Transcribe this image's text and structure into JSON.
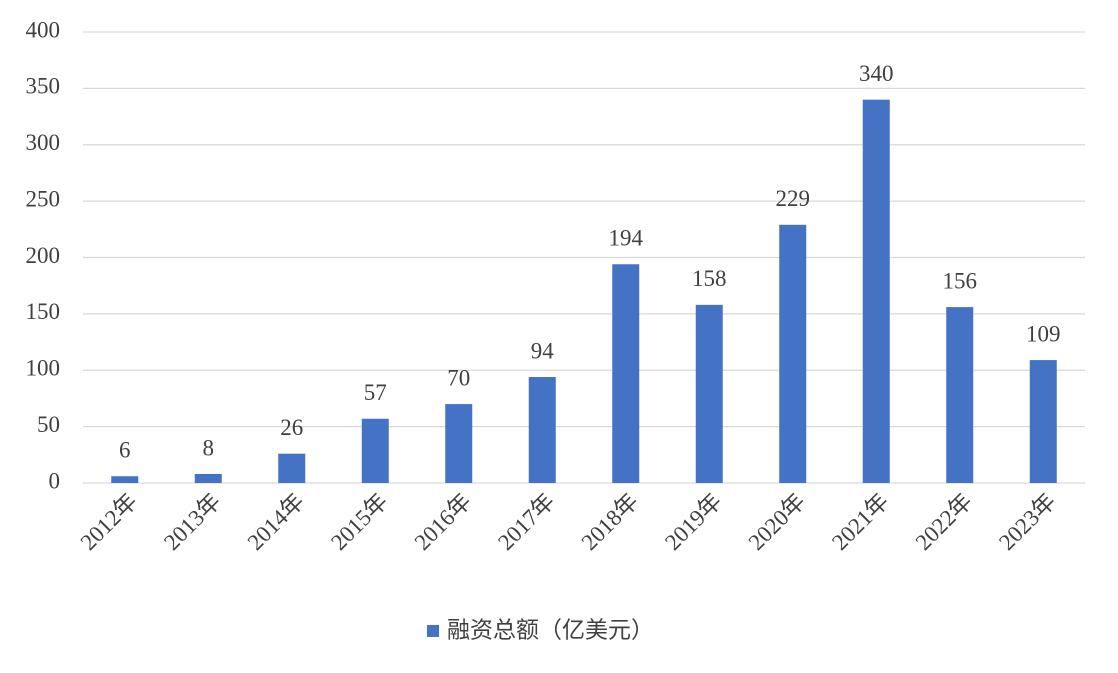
{
  "chart_data": {
    "type": "bar",
    "categories": [
      "2012年",
      "2013年",
      "2014年",
      "2015年",
      "2016年",
      "2017年",
      "2018年",
      "2019年",
      "2020年",
      "2021年",
      "2022年",
      "2023年"
    ],
    "series": [
      {
        "name": "融资总额（亿美元）",
        "color": "#4472c4",
        "values": [
          6,
          8,
          26,
          57,
          70,
          94,
          194,
          158,
          229,
          340,
          156,
          109
        ]
      }
    ],
    "ylim": [
      0,
      400
    ],
    "yticks": [
      0,
      50,
      100,
      150,
      200,
      250,
      300,
      350,
      400
    ],
    "grid": true,
    "legend": "bottom"
  }
}
